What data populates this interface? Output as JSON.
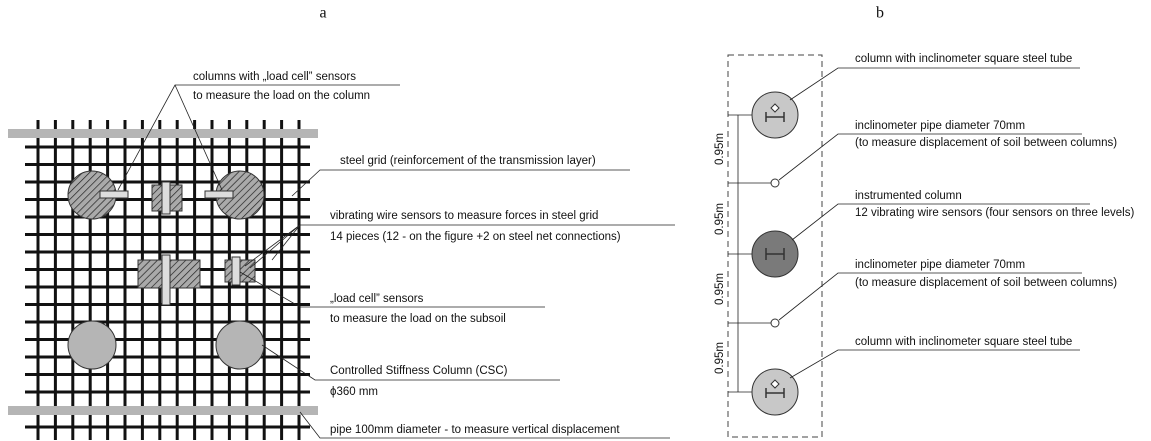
{
  "panel_a": {
    "label": "a",
    "annotations": [
      {
        "text": "columns with „load cell” sensors",
        "subtext": "to measure the load on the column"
      },
      {
        "text": "steel grid (reinforcement of the transmission layer)"
      },
      {
        "text": "vibrating wire sensors to measure forces in steel grid",
        "subtext": "14 pieces (12 - on the figure +2 on steel net connections)"
      },
      {
        "text": "„load cell” sensors",
        "subtext": "to measure the load on the subsoil"
      },
      {
        "text": "Controlled Stiffness Column (CSC)",
        "subtext": "ϕ360 mm"
      },
      {
        "text": "pipe 100mm diameter  - to measure vertical displacement"
      }
    ]
  },
  "panel_b": {
    "label": "b",
    "annotations": [
      {
        "text": "column with inclinometer square steel tube"
      },
      {
        "text": "inclinometer pipe diameter 70mm",
        "subtext": "(to measure displacement of soil between columns)"
      },
      {
        "text": "instrumented column",
        "subtext": "12 vibrating wire sensors (four sensors on three levels)"
      },
      {
        "text": "inclinometer pipe diameter 70mm",
        "subtext": "(to measure displacement of soil between columns)"
      },
      {
        "text": "column with inclinometer square steel tube"
      }
    ],
    "dimensions": [
      "0.95m",
      "0.95m",
      "0.95m",
      "0.95m"
    ]
  }
}
